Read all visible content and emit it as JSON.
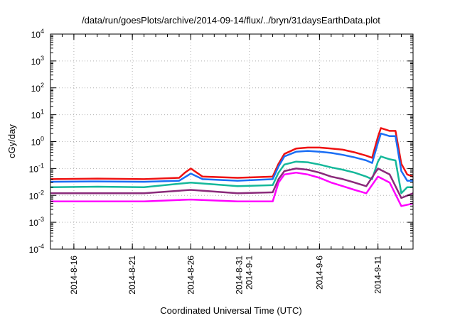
{
  "chart_data": {
    "type": "line",
    "title": "/data/run/goesPlots/archive/2014-09-14/flux/../bryn/31daysEarthData.plot",
    "xlabel": "Coordinated Universal Time (UTC)",
    "ylabel": "cGy/day",
    "yscale": "log",
    "ylim": [
      0.0001,
      10000
    ],
    "xlim": [
      "2014-08-14",
      "2014-09-14"
    ],
    "grid": true,
    "legend": "none",
    "y_ticks": [
      {
        "base": "10",
        "exp": "-4",
        "value": 0.0001
      },
      {
        "base": "10",
        "exp": "-3",
        "value": 0.001
      },
      {
        "base": "10",
        "exp": "-2",
        "value": 0.01
      },
      {
        "base": "10",
        "exp": "-1",
        "value": 0.1
      },
      {
        "base": "10",
        "exp": "0",
        "value": 1
      },
      {
        "base": "10",
        "exp": "1",
        "value": 10
      },
      {
        "base": "10",
        "exp": "2",
        "value": 100
      },
      {
        "base": "10",
        "exp": "3",
        "value": 1000
      },
      {
        "base": "10",
        "exp": "4",
        "value": 10000
      }
    ],
    "x_ticks": [
      {
        "date": "2014-08-16",
        "lines": [
          "2014-8-16"
        ]
      },
      {
        "date": "2014-08-21",
        "lines": [
          "2014-8-21"
        ]
      },
      {
        "date": "2014-08-26",
        "lines": [
          "2014-8-26"
        ]
      },
      {
        "date": "2014-08-31",
        "lines": [
          "2014-8-31",
          "2014-9-1"
        ]
      },
      {
        "date": "2014-09-06",
        "lines": [
          "2014-9-6"
        ]
      },
      {
        "date": "2014-09-11",
        "lines": [
          "2014-9-11"
        ]
      }
    ],
    "series": [
      {
        "color": "#ee1111",
        "x": [
          "2014-08-14",
          "2014-08-18",
          "2014-08-22",
          "2014-08-25",
          "2014-08-25T12:00",
          "2014-08-26",
          "2014-08-27",
          "2014-08-30",
          "2014-09-02",
          "2014-09-02T12:00",
          "2014-09-03",
          "2014-09-04",
          "2014-09-05",
          "2014-09-06",
          "2014-09-07",
          "2014-09-08",
          "2014-09-09",
          "2014-09-10",
          "2014-09-10T12:00",
          "2014-09-11",
          "2014-09-11T06:00",
          "2014-09-12",
          "2014-09-12T12:00",
          "2014-09-13",
          "2014-09-13T12:00",
          "2014-09-14"
        ],
        "y": [
          0.04,
          0.042,
          0.04,
          0.045,
          0.07,
          0.1,
          0.05,
          0.045,
          0.05,
          0.15,
          0.35,
          0.55,
          0.6,
          0.6,
          0.55,
          0.5,
          0.4,
          0.3,
          0.25,
          1.5,
          3.2,
          2.5,
          2.5,
          0.15,
          0.06,
          0.05
        ]
      },
      {
        "color": "#1a6ef5",
        "x": [
          "2014-08-14",
          "2014-08-18",
          "2014-08-22",
          "2014-08-25",
          "2014-08-26",
          "2014-08-27",
          "2014-08-30",
          "2014-09-02",
          "2014-09-02T12:00",
          "2014-09-03",
          "2014-09-04",
          "2014-09-05",
          "2014-09-06",
          "2014-09-07",
          "2014-09-08",
          "2014-09-09",
          "2014-09-10",
          "2014-09-10T12:00",
          "2014-09-11",
          "2014-09-11T06:00",
          "2014-09-12",
          "2014-09-12T12:00",
          "2014-09-13",
          "2014-09-13T12:00",
          "2014-09-14"
        ],
        "y": [
          0.032,
          0.033,
          0.032,
          0.035,
          0.065,
          0.04,
          0.035,
          0.04,
          0.12,
          0.28,
          0.42,
          0.45,
          0.42,
          0.38,
          0.32,
          0.26,
          0.2,
          0.16,
          0.9,
          2.0,
          1.6,
          1.6,
          0.08,
          0.035,
          0.035
        ]
      },
      {
        "color": "#15b89a",
        "x": [
          "2014-08-14",
          "2014-08-18",
          "2014-08-22",
          "2014-08-26",
          "2014-08-30",
          "2014-09-02",
          "2014-09-02T12:00",
          "2014-09-03",
          "2014-09-04",
          "2014-09-05",
          "2014-09-06",
          "2014-09-07",
          "2014-09-08",
          "2014-09-09",
          "2014-09-10",
          "2014-09-10T12:00",
          "2014-09-11",
          "2014-09-11T06:00",
          "2014-09-12",
          "2014-09-12T12:00",
          "2014-09-13",
          "2014-09-13T12:00",
          "2014-09-14"
        ],
        "y": [
          0.02,
          0.021,
          0.02,
          0.03,
          0.022,
          0.024,
          0.07,
          0.14,
          0.18,
          0.17,
          0.14,
          0.11,
          0.09,
          0.07,
          0.05,
          0.04,
          0.18,
          0.28,
          0.22,
          0.2,
          0.012,
          0.02,
          0.02
        ]
      },
      {
        "color": "#8a2a7a",
        "x": [
          "2014-08-14",
          "2014-08-18",
          "2014-08-22",
          "2014-08-26",
          "2014-08-30",
          "2014-09-02",
          "2014-09-02T12:00",
          "2014-09-03",
          "2014-09-04",
          "2014-09-05",
          "2014-09-06",
          "2014-09-07",
          "2014-09-08",
          "2014-09-09",
          "2014-09-10",
          "2014-09-11",
          "2014-09-12",
          "2014-09-13",
          "2014-09-14"
        ],
        "y": [
          0.012,
          0.012,
          0.012,
          0.016,
          0.012,
          0.013,
          0.04,
          0.08,
          0.1,
          0.09,
          0.07,
          0.05,
          0.04,
          0.03,
          0.022,
          0.1,
          0.06,
          0.008,
          0.012
        ]
      },
      {
        "color": "#ff00ff",
        "x": [
          "2014-08-14",
          "2014-08-18",
          "2014-08-22",
          "2014-08-26",
          "2014-08-30",
          "2014-09-02",
          "2014-09-02T12:00",
          "2014-09-03",
          "2014-09-04",
          "2014-09-05",
          "2014-09-06",
          "2014-09-07",
          "2014-09-08",
          "2014-09-09",
          "2014-09-10",
          "2014-09-11",
          "2014-09-12",
          "2014-09-13",
          "2014-09-14"
        ],
        "y": [
          0.006,
          0.006,
          0.006,
          0.007,
          0.006,
          0.006,
          0.03,
          0.06,
          0.07,
          0.06,
          0.045,
          0.03,
          0.022,
          0.016,
          0.012,
          0.05,
          0.03,
          0.004,
          0.005
        ]
      }
    ]
  }
}
